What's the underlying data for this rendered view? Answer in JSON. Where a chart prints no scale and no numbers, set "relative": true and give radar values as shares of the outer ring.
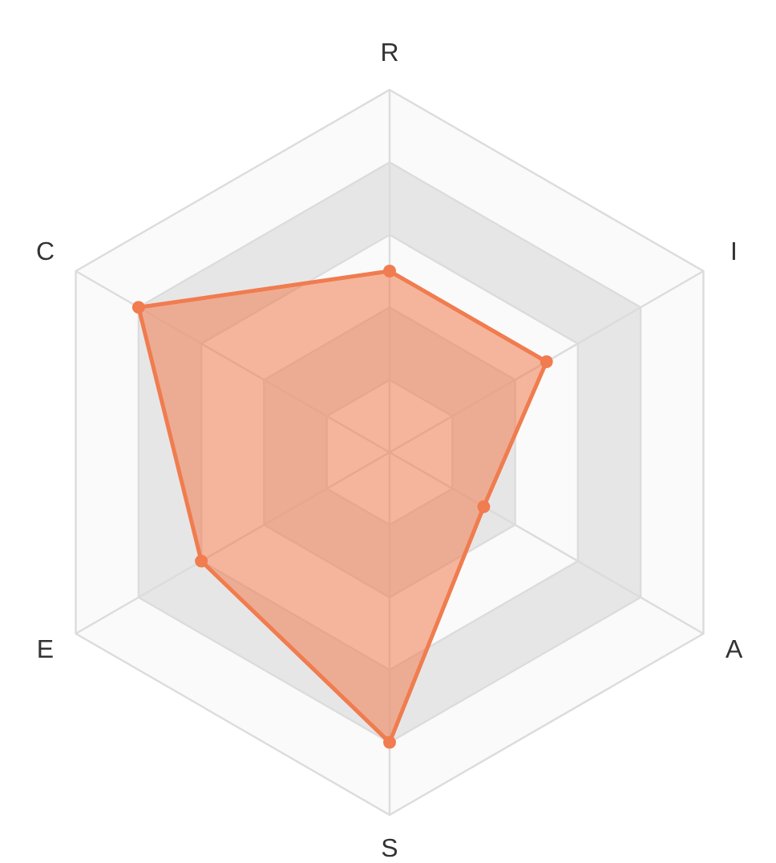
{
  "chart_data": {
    "type": "radar",
    "relative": true,
    "categories": [
      "R",
      "I",
      "A",
      "S",
      "E",
      "C"
    ],
    "series": [
      {
        "color": "#f07c4f",
        "values": [
          0.5,
          0.5,
          0.3,
          0.8,
          0.6,
          0.8
        ]
      }
    ],
    "grid": true,
    "marker": "circle",
    "line_style": "solid"
  }
}
